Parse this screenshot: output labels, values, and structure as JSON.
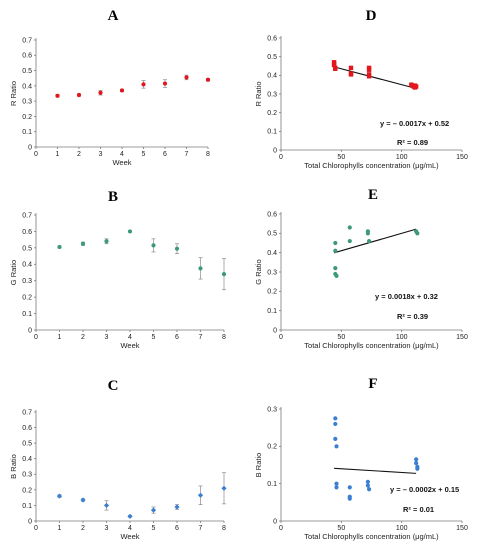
{
  "chart_data": [
    {
      "id": "A",
      "panel_label": "A",
      "type": "scatter",
      "xlabel": "Week",
      "ylabel": "R Ratio",
      "xlim": [
        0,
        8
      ],
      "ylim": [
        0,
        0.7
      ],
      "xticks": [
        "0",
        "1",
        "2",
        "3",
        "4",
        "5",
        "6",
        "7",
        "8"
      ],
      "yticks": [
        "0",
        "0.1",
        "0.2",
        "0.3",
        "0.4",
        "0.5",
        "0.6",
        "0.7"
      ],
      "color": "#e3161e",
      "marker": "circle",
      "grid": false,
      "x": [
        1,
        2,
        3,
        4,
        5,
        6,
        7,
        8
      ],
      "y": [
        0.335,
        0.34,
        0.355,
        0.37,
        0.41,
        0.415,
        0.455,
        0.44
      ],
      "err": [
        0.008,
        0.008,
        0.015,
        0.008,
        0.025,
        0.025,
        0.015,
        0.008
      ]
    },
    {
      "id": "B",
      "panel_label": "B",
      "type": "scatter",
      "xlabel": "Week",
      "ylabel": "G Ratio",
      "xlim": [
        0,
        8
      ],
      "ylim": [
        0,
        0.7
      ],
      "xticks": [
        "0",
        "1",
        "2",
        "3",
        "4",
        "5",
        "6",
        "7",
        "8"
      ],
      "yticks": [
        "0",
        "0.1",
        "0.2",
        "0.3",
        "0.4",
        "0.5",
        "0.6",
        "0.7"
      ],
      "color": "#3d9a78",
      "marker": "circle",
      "grid": false,
      "x": [
        1,
        2,
        3,
        4,
        5,
        6,
        7,
        8
      ],
      "y": [
        0.505,
        0.525,
        0.54,
        0.6,
        0.515,
        0.495,
        0.375,
        0.34
      ],
      "err": [
        0.005,
        0.01,
        0.015,
        0.005,
        0.04,
        0.03,
        0.065,
        0.095
      ]
    },
    {
      "id": "C",
      "panel_label": "C",
      "type": "scatter",
      "xlabel": "Week",
      "ylabel": "B Ratio",
      "xlim": [
        0,
        8
      ],
      "ylim": [
        0,
        0.7
      ],
      "xticks": [
        "0",
        "1",
        "2",
        "3",
        "4",
        "5",
        "6",
        "7",
        "8"
      ],
      "yticks": [
        "0",
        "0.1",
        "0.2",
        "0.3",
        "0.4",
        "0.5",
        "0.6",
        "0.7"
      ],
      "color": "#3b7fd0",
      "marker": "diamond",
      "grid": false,
      "x": [
        1,
        2,
        3,
        4,
        5,
        6,
        7,
        8
      ],
      "y": [
        0.16,
        0.135,
        0.1,
        0.03,
        0.07,
        0.09,
        0.165,
        0.21
      ],
      "err": [
        0.008,
        0.008,
        0.03,
        0.005,
        0.02,
        0.015,
        0.06,
        0.1
      ]
    },
    {
      "id": "D",
      "panel_label": "D",
      "type": "scatter",
      "xlabel": "Total Chlorophylls concentration (μg/mL)",
      "ylabel": "R Ratio",
      "xlim": [
        0,
        150
      ],
      "ylim": [
        0,
        0.6
      ],
      "xticks": [
        "0",
        "50",
        "100",
        "150"
      ],
      "yticks": [
        "0",
        "0.1",
        "0.2",
        "0.3",
        "0.4",
        "0.5",
        "0.6"
      ],
      "color": "#e3161e",
      "marker": "square",
      "grid": false,
      "x": [
        44,
        44,
        44,
        45,
        45,
        58,
        58,
        58,
        73,
        73,
        73,
        73,
        108,
        109,
        110,
        111,
        111,
        112
      ],
      "y": [
        0.47,
        0.46,
        0.455,
        0.44,
        0.435,
        0.44,
        0.41,
        0.405,
        0.44,
        0.43,
        0.405,
        0.395,
        0.35,
        0.345,
        0.34,
        0.345,
        0.335,
        0.34
      ],
      "trend": {
        "slope": -0.0017,
        "intercept": 0.52,
        "x_range": [
          44,
          112
        ]
      },
      "equation": "y = – 0.0017x + 0.52",
      "r2": "R² = 0.89"
    },
    {
      "id": "E",
      "panel_label": "E",
      "type": "scatter",
      "xlabel": "Total Chlorophylls concentration (μg/mL)",
      "ylabel": "G Ratio",
      "xlim": [
        0,
        150
      ],
      "ylim": [
        0,
        0.6
      ],
      "xticks": [
        "0",
        "50",
        "100",
        "150"
      ],
      "yticks": [
        "0",
        "0.1",
        "0.2",
        "0.3",
        "0.4",
        "0.5",
        "0.6"
      ],
      "color": "#3d9a78",
      "marker": "circle",
      "grid": false,
      "x": [
        45,
        45,
        45,
        45,
        46,
        57,
        57,
        72,
        72,
        73,
        112,
        113
      ],
      "y": [
        0.45,
        0.41,
        0.32,
        0.29,
        0.28,
        0.53,
        0.46,
        0.51,
        0.5,
        0.46,
        0.51,
        0.5
      ],
      "trend": {
        "slope": 0.0018,
        "intercept": 0.32,
        "x_range": [
          44,
          112
        ]
      },
      "equation": "y = 0.0018x + 0.32",
      "r2": "R² = 0.39"
    },
    {
      "id": "F",
      "panel_label": "F",
      "type": "scatter",
      "xlabel": "Total Chlorophylls concentration (μg/mL)",
      "ylabel": "B Ratio",
      "xlim": [
        0,
        150
      ],
      "ylim": [
        0,
        0.3
      ],
      "xticks": [
        "0",
        "50",
        "100",
        "150"
      ],
      "yticks": [
        "0",
        "0.1",
        "0.2",
        "0.3"
      ],
      "color": "#3b7fd0",
      "marker": "circle",
      "grid": false,
      "x": [
        45,
        45,
        45,
        46,
        46,
        46,
        57,
        57,
        57,
        72,
        72,
        73,
        112,
        112,
        113,
        113
      ],
      "y": [
        0.275,
        0.26,
        0.22,
        0.2,
        0.1,
        0.09,
        0.09,
        0.065,
        0.06,
        0.105,
        0.095,
        0.085,
        0.165,
        0.155,
        0.145,
        0.14
      ],
      "trend": {
        "slope": -0.0002,
        "intercept": 0.15,
        "x_range": [
          44,
          112
        ]
      },
      "equation": "y = – 0.0002x + 0.15",
      "r2": "R² = 0.01"
    }
  ]
}
